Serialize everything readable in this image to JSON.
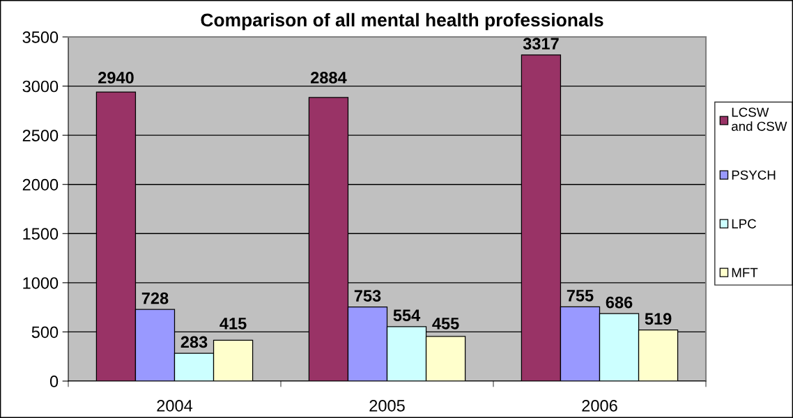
{
  "chart_data": {
    "type": "bar",
    "title": "Comparison of all mental health professionals",
    "categories": [
      "2004",
      "2005",
      "2006"
    ],
    "series": [
      {
        "name": "LCSW\nand CSW",
        "color": "#993366",
        "values": [
          2940,
          2884,
          3317
        ]
      },
      {
        "name": "PSYCH",
        "color": "#9999ff",
        "values": [
          728,
          753,
          755
        ]
      },
      {
        "name": "LPC",
        "color": "#ccffff",
        "values": [
          283,
          554,
          686
        ]
      },
      {
        "name": "MFT",
        "color": "#ffffcc",
        "values": [
          415,
          455,
          519
        ]
      }
    ],
    "ylim": [
      0,
      3500
    ],
    "yticks": [
      0,
      500,
      1000,
      1500,
      2000,
      2500,
      3000,
      3500
    ],
    "grid": "y",
    "legend": "right",
    "data_labels": true
  }
}
